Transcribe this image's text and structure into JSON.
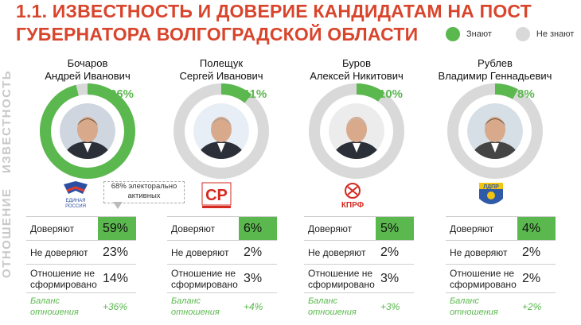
{
  "title_line1": "1.1. ИЗВЕСТНОСТЬ И ДОВЕРИЕ КАНДИДАТАМ НА ПОСТ",
  "title_line2": "ГУБЕРНАТОРА ВОЛГОГРАДСКОЙ ОБЛАСТИ",
  "legend": {
    "know": "Знают",
    "dont_know": "Не знают"
  },
  "colors": {
    "accent": "#5bb84e",
    "grey": "#d9d9d9",
    "title": "#d9452c"
  },
  "side_labels": {
    "fame": "ИЗВЕСТНОСТЬ",
    "attitude": "ОТНОШЕНИЕ"
  },
  "callout": "68% электорально активных",
  "row_labels": {
    "trust": "Доверяют",
    "distrust": "Не доверяют",
    "undecided": "Отношение не сформировано",
    "balance": "Баланс отношения"
  },
  "chart_data": {
    "type": "pie",
    "series_labels": [
      "Знают",
      "Не знают"
    ],
    "candidates": [
      {
        "name1": "Бочаров",
        "name2": "Андрей Иванович",
        "known": 96,
        "known_label": "96%",
        "party": "ЕДИНАЯ РОССИЯ",
        "trust": "59%",
        "distrust": "23%",
        "undecided": "14%",
        "balance": "+36%"
      },
      {
        "name1": "Полещук",
        "name2": "Сергей Иванович",
        "known": 11,
        "known_label": "11%",
        "party": "СР",
        "trust": "6%",
        "distrust": "2%",
        "undecided": "3%",
        "balance": "+4%"
      },
      {
        "name1": "Буров",
        "name2": "Алексей Никитович",
        "known": 10,
        "known_label": "10%",
        "party": "КПРФ",
        "trust": "5%",
        "distrust": "2%",
        "undecided": "3%",
        "balance": "+3%"
      },
      {
        "name1": "Рублев",
        "name2": "Владимир Геннадьевич",
        "known": 8,
        "known_label": "8%",
        "party": "ЛДПР",
        "trust": "4%",
        "distrust": "2%",
        "undecided": "2%",
        "balance": "+2%"
      }
    ]
  }
}
